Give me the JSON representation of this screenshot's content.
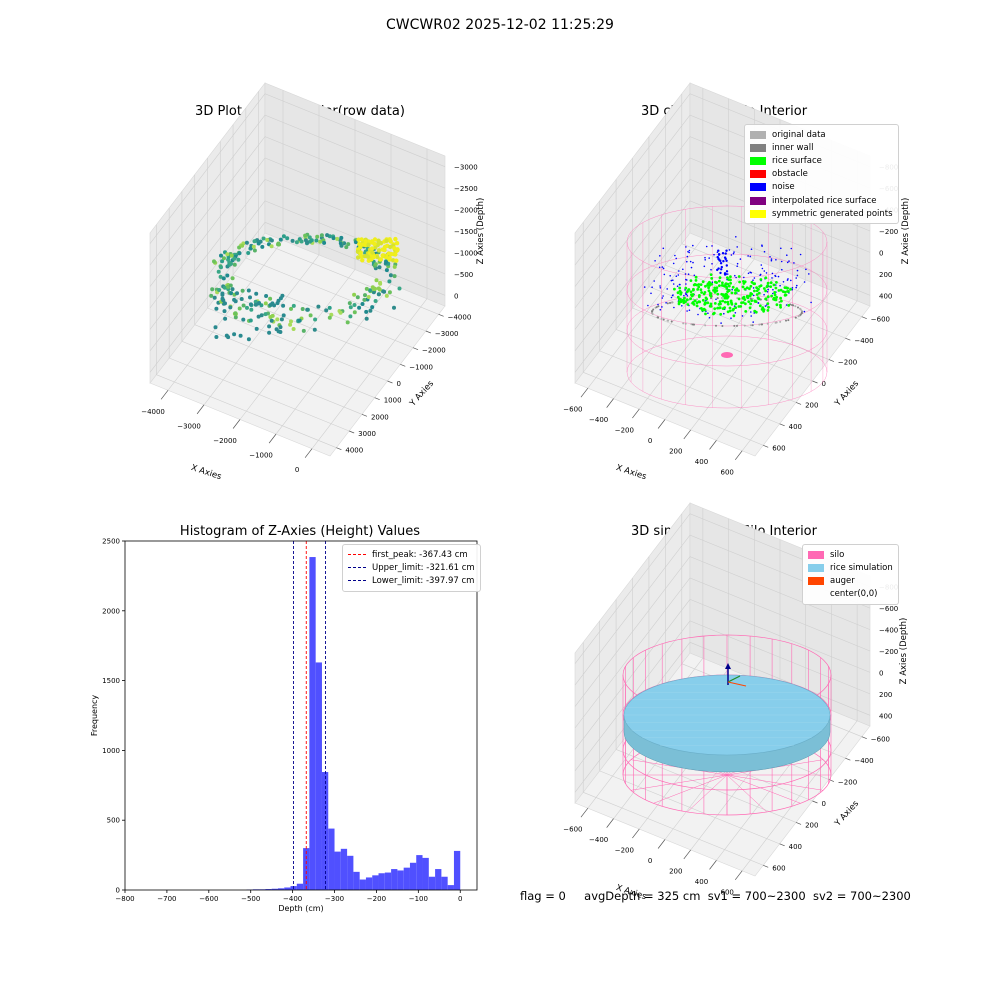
{
  "figure": {
    "suptitle": "CWCWR02 2025-12-02 11:25:29"
  },
  "colors": {
    "histogram_bar": "#5050ff",
    "peak_line": "#ff0000",
    "limit_line": "#00008b",
    "silo": "#ff69b4",
    "rice_simulation": "#87ceeb",
    "auger": "#ff4500",
    "original_data": "#b0b0b0",
    "inner_wall": "#808080",
    "rice_surface": "#00ff00",
    "obstacle": "#ff0000",
    "noise": "#0000ff",
    "interpolated": "#800080",
    "symmetric": "#ffff00"
  },
  "chart_data": [
    {
      "type": "scatter",
      "subtype": "3d",
      "title": "3D Plot of Silo Interior(row data)",
      "xlabel": "X Axies",
      "ylabel": "Y Axies",
      "zlabel": "Z Axies (Depth)",
      "x_ticks": [
        "−4000",
        "−3000",
        "−2000",
        "−1000",
        "0"
      ],
      "y_ticks": [
        "4000",
        "3000",
        "2000",
        "1000",
        "0",
        "−1000",
        "−2000",
        "−3000",
        "−4000"
      ],
      "z_ticks": [
        "0",
        "−500",
        "−1000",
        "−1500",
        "−2000",
        "−2500",
        "−3000"
      ],
      "grid": true
    },
    {
      "type": "scatter",
      "subtype": "3d",
      "title": "3D classify of Silo Interior",
      "xlabel": "X Axies",
      "ylabel": "Y Axies",
      "zlabel": "Z Axies (Depth)",
      "x_ticks": [
        "−600",
        "−400",
        "−200",
        "0",
        "200",
        "400",
        "600"
      ],
      "y_ticks": [
        "600",
        "400",
        "200",
        "0",
        "−200",
        "−400",
        "−600"
      ],
      "z_ticks": [
        "400",
        "200",
        "0",
        "−200",
        "−400",
        "−600",
        "−800"
      ],
      "legend": [
        "original data",
        "inner wall",
        "rice surface",
        "obstacle",
        "noise",
        "interpolated rice surface",
        "symmetric generated points"
      ],
      "legend_position": "top-right",
      "grid": true
    },
    {
      "type": "bar",
      "subtype": "histogram",
      "title": "Histogram of Z-Axies (Height) Values",
      "xlabel": "Depth (cm)",
      "ylabel": "Frequency",
      "xlim": [
        -800,
        40
      ],
      "ylim": [
        0,
        2500
      ],
      "x_ticks": [
        "−800",
        "−700",
        "−600",
        "−500",
        "−400",
        "−300",
        "−200",
        "−100",
        "0"
      ],
      "y_ticks": [
        "0",
        "500",
        "1000",
        "1500",
        "2000",
        "2500"
      ],
      "bin_width": 15,
      "bins": [
        {
          "x0": -510,
          "count": 3
        },
        {
          "x0": -495,
          "count": 5
        },
        {
          "x0": -480,
          "count": 5
        },
        {
          "x0": -465,
          "count": 7
        },
        {
          "x0": -450,
          "count": 9
        },
        {
          "x0": -435,
          "count": 12
        },
        {
          "x0": -420,
          "count": 18
        },
        {
          "x0": -405,
          "count": 28
        },
        {
          "x0": -390,
          "count": 45
        },
        {
          "x0": -375,
          "count": 300
        },
        {
          "x0": -360,
          "count": 2385
        },
        {
          "x0": -345,
          "count": 1630
        },
        {
          "x0": -330,
          "count": 845
        },
        {
          "x0": -315,
          "count": 440
        },
        {
          "x0": -300,
          "count": 275
        },
        {
          "x0": -285,
          "count": 295
        },
        {
          "x0": -270,
          "count": 245
        },
        {
          "x0": -255,
          "count": 130
        },
        {
          "x0": -240,
          "count": 75
        },
        {
          "x0": -225,
          "count": 90
        },
        {
          "x0": -210,
          "count": 105
        },
        {
          "x0": -195,
          "count": 120
        },
        {
          "x0": -180,
          "count": 125
        },
        {
          "x0": -165,
          "count": 150
        },
        {
          "x0": -150,
          "count": 140
        },
        {
          "x0": -135,
          "count": 160
        },
        {
          "x0": -120,
          "count": 195
        },
        {
          "x0": -105,
          "count": 250
        },
        {
          "x0": -90,
          "count": 230
        },
        {
          "x0": -75,
          "count": 95
        },
        {
          "x0": -60,
          "count": 150
        },
        {
          "x0": -45,
          "count": 95
        },
        {
          "x0": -30,
          "count": 35
        },
        {
          "x0": -15,
          "count": 280
        }
      ],
      "vlines": [
        {
          "name": "first_peak: -367.43 cm",
          "x": -367.43,
          "color": "#ff0000"
        },
        {
          "name": "Upper_limit: -321.61 cm",
          "x": -321.61,
          "color": "#00008b"
        },
        {
          "name": "Lower_limit: -397.97 cm",
          "x": -397.97,
          "color": "#00008b"
        }
      ],
      "legend_position": "top-right",
      "grid": false
    },
    {
      "type": "scatter",
      "subtype": "3d-surface",
      "title": "3D simulation of Silo Interior",
      "xlabel": "X Axies",
      "ylabel": "Y Axies",
      "zlabel": "Z Axies (Depth)",
      "x_ticks": [
        "−600",
        "−400",
        "−200",
        "0",
        "200",
        "400",
        "600"
      ],
      "y_ticks": [
        "600",
        "400",
        "200",
        "0",
        "−200",
        "−400",
        "−600"
      ],
      "z_ticks": [
        "400",
        "200",
        "0",
        "−200",
        "−400",
        "−600",
        "−800"
      ],
      "legend": [
        "silo",
        "rice simulation",
        "auger",
        "center(0,0)"
      ],
      "legend_position": "top-right",
      "grid": true
    }
  ],
  "footer": {
    "flag": "flag = 0",
    "avg_depth": "avgDepth = 325 cm",
    "sv1": "sv1 = 700~2300",
    "sv2": "sv2 = 700~2300"
  }
}
